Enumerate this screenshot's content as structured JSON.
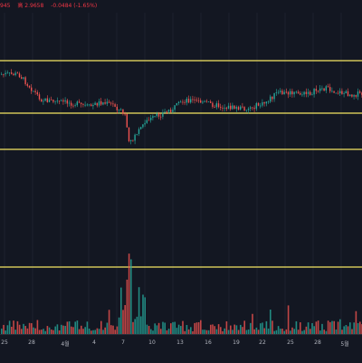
{
  "legend": {
    "open_low": "945",
    "high": "高 2.9658",
    "change": "-0.0484 (-1.65%)"
  },
  "x_axis": {
    "ticks": [
      "25",
      "28",
      "4월",
      "4",
      "7",
      "10",
      "13",
      "16",
      "19",
      "22",
      "25",
      "28",
      "5월",
      "4"
    ]
  },
  "colors": {
    "background": "#131722",
    "up": "#26a69a",
    "down": "#ef5350",
    "level_line": "#f5e663",
    "axis_text": "#b2b5be"
  },
  "price_levels_shown": 4
}
